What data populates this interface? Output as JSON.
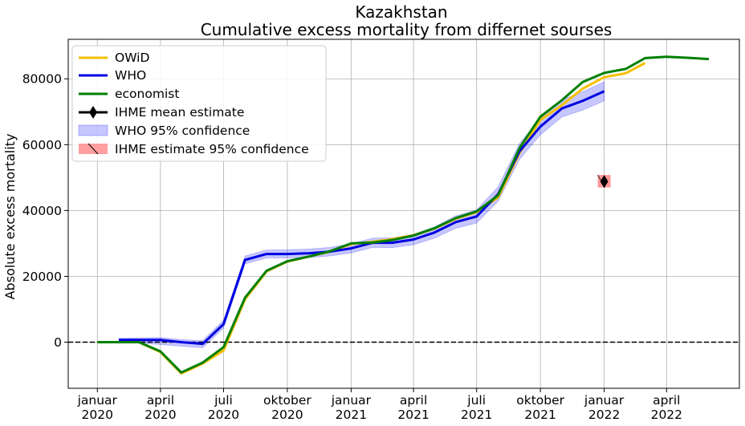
{
  "chart_data": {
    "type": "line",
    "title": "Kazakhstan",
    "subtitle": "Cumulative excess mortality from differnet sourses",
    "ylabel": "Absolute excess mortality",
    "xlabel": "",
    "xlim": [
      "2019-11-20",
      "2022-07-15"
    ],
    "ylim": [
      -14000,
      92000
    ],
    "grid": true,
    "legend_position": "upper-left",
    "y_ticks": [
      0,
      20000,
      40000,
      60000,
      80000
    ],
    "x_ticks": [
      {
        "date": "2020-01-01",
        "line1": "januar",
        "line2": "2020"
      },
      {
        "date": "2020-04-01",
        "line1": "april",
        "line2": "2020"
      },
      {
        "date": "2020-07-01",
        "line1": "juli",
        "line2": "2020"
      },
      {
        "date": "2020-10-01",
        "line1": "oktober",
        "line2": "2020"
      },
      {
        "date": "2021-01-01",
        "line1": "januar",
        "line2": "2021"
      },
      {
        "date": "2021-04-01",
        "line1": "april",
        "line2": "2021"
      },
      {
        "date": "2021-07-01",
        "line1": "juli",
        "line2": "2021"
      },
      {
        "date": "2021-10-01",
        "line1": "oktober",
        "line2": "2021"
      },
      {
        "date": "2022-01-01",
        "line1": "januar",
        "line2": "2022"
      },
      {
        "date": "2022-04-01",
        "line1": "april",
        "line2": "2022"
      }
    ],
    "reference_line": {
      "y": 0,
      "style": "dashed",
      "color": "#000000"
    },
    "series": [
      {
        "name": "OWiD",
        "color": "#f5bf00",
        "points": [
          [
            "2020-01-01",
            0
          ],
          [
            "2020-02-01",
            0
          ],
          [
            "2020-03-01",
            0
          ],
          [
            "2020-04-01",
            -3000
          ],
          [
            "2020-05-01",
            -9500
          ],
          [
            "2020-06-01",
            -6500
          ],
          [
            "2020-07-01",
            -2500
          ],
          [
            "2020-08-01",
            13000
          ],
          [
            "2020-09-01",
            21500
          ],
          [
            "2020-10-01",
            24500
          ],
          [
            "2020-11-01",
            26000
          ],
          [
            "2020-12-01",
            27500
          ],
          [
            "2021-01-01",
            29800
          ],
          [
            "2021-02-01",
            30500
          ],
          [
            "2021-03-01",
            31300
          ],
          [
            "2021-04-01",
            32500
          ],
          [
            "2021-05-01",
            34500
          ],
          [
            "2021-06-01",
            37500
          ],
          [
            "2021-07-01",
            39500
          ],
          [
            "2021-08-01",
            44000
          ],
          [
            "2021-09-01",
            57500
          ],
          [
            "2021-10-01",
            67500
          ],
          [
            "2021-11-01",
            72000
          ],
          [
            "2021-12-01",
            77000
          ],
          [
            "2022-01-01",
            80500
          ],
          [
            "2022-02-01",
            81700
          ],
          [
            "2022-03-01",
            84800
          ]
        ]
      },
      {
        "name": "WHO",
        "color": "#0000e0",
        "points": [
          [
            "2020-02-01",
            700
          ],
          [
            "2020-03-01",
            700
          ],
          [
            "2020-04-01",
            700
          ],
          [
            "2020-05-01",
            0
          ],
          [
            "2020-06-01",
            -500
          ],
          [
            "2020-07-01",
            5500
          ],
          [
            "2020-08-01",
            25000
          ],
          [
            "2020-09-01",
            26800
          ],
          [
            "2020-10-01",
            26800
          ],
          [
            "2020-11-01",
            27000
          ],
          [
            "2020-12-01",
            27500
          ],
          [
            "2021-01-01",
            28500
          ],
          [
            "2021-02-01",
            30200
          ],
          [
            "2021-03-01",
            30200
          ],
          [
            "2021-04-01",
            31200
          ],
          [
            "2021-05-01",
            33300
          ],
          [
            "2021-06-01",
            36500
          ],
          [
            "2021-07-01",
            38200
          ],
          [
            "2021-08-01",
            45000
          ],
          [
            "2021-09-01",
            58000
          ],
          [
            "2021-10-01",
            65500
          ],
          [
            "2021-11-01",
            71000
          ],
          [
            "2021-12-01",
            73300
          ],
          [
            "2022-01-01",
            76200
          ]
        ]
      },
      {
        "name": "economist",
        "color": "#008000",
        "points": [
          [
            "2020-01-01",
            0
          ],
          [
            "2020-02-01",
            0
          ],
          [
            "2020-03-01",
            0
          ],
          [
            "2020-04-01",
            -2800
          ],
          [
            "2020-05-01",
            -9200
          ],
          [
            "2020-06-01",
            -6200
          ],
          [
            "2020-07-01",
            -1500
          ],
          [
            "2020-08-01",
            13500
          ],
          [
            "2020-09-01",
            21700
          ],
          [
            "2020-10-01",
            24600
          ],
          [
            "2020-11-01",
            26000
          ],
          [
            "2020-12-01",
            27600
          ],
          [
            "2021-01-01",
            30000
          ],
          [
            "2021-02-01",
            30300
          ],
          [
            "2021-03-01",
            31000
          ],
          [
            "2021-04-01",
            32400
          ],
          [
            "2021-05-01",
            34600
          ],
          [
            "2021-06-01",
            37700
          ],
          [
            "2021-07-01",
            39700
          ],
          [
            "2021-08-01",
            44600
          ],
          [
            "2021-09-01",
            59000
          ],
          [
            "2021-10-01",
            68500
          ],
          [
            "2021-11-01",
            73500
          ],
          [
            "2021-12-01",
            79000
          ],
          [
            "2022-01-01",
            81800
          ],
          [
            "2022-02-01",
            83000
          ],
          [
            "2022-03-01",
            86300
          ],
          [
            "2022-04-01",
            86700
          ],
          [
            "2022-05-01",
            86400
          ],
          [
            "2022-06-01",
            86000
          ]
        ]
      }
    ],
    "confidence_band": {
      "name": "WHO 95% confidence",
      "color": "#0000ff",
      "opacity": 0.22,
      "points": [
        [
          "2020-02-01",
          -200,
          1200
        ],
        [
          "2020-03-01",
          -300,
          1300
        ],
        [
          "2020-04-01",
          -700,
          1400
        ],
        [
          "2020-05-01",
          -1200,
          800
        ],
        [
          "2020-06-01",
          -1700,
          500
        ],
        [
          "2020-07-01",
          4300,
          6700
        ],
        [
          "2020-08-01",
          23800,
          26200
        ],
        [
          "2020-09-01",
          25600,
          28000
        ],
        [
          "2020-10-01",
          25600,
          28100
        ],
        [
          "2020-11-01",
          25700,
          28300
        ],
        [
          "2020-12-01",
          26200,
          28800
        ],
        [
          "2021-01-01",
          27100,
          29900
        ],
        [
          "2021-02-01",
          28800,
          31600
        ],
        [
          "2021-03-01",
          28700,
          31700
        ],
        [
          "2021-04-01",
          29600,
          32800
        ],
        [
          "2021-05-01",
          31600,
          35000
        ],
        [
          "2021-06-01",
          34600,
          38400
        ],
        [
          "2021-07-01",
          36200,
          40200
        ],
        [
          "2021-08-01",
          42800,
          47200
        ],
        [
          "2021-09-01",
          55600,
          60400
        ],
        [
          "2021-10-01",
          63000,
          68000
        ],
        [
          "2021-11-01",
          68400,
          73600
        ],
        [
          "2021-12-01",
          70500,
          76100
        ],
        [
          "2022-01-01",
          73300,
          79100
        ]
      ]
    },
    "ihme": {
      "mean_name": "IHME mean estimate",
      "band_name": " IHME estimate 95% confidence",
      "date": "2022-01-01",
      "mean": 48800,
      "low": 47000,
      "high": 50800,
      "marker_color": "#000000",
      "band_color": "#ff6b6b"
    }
  }
}
